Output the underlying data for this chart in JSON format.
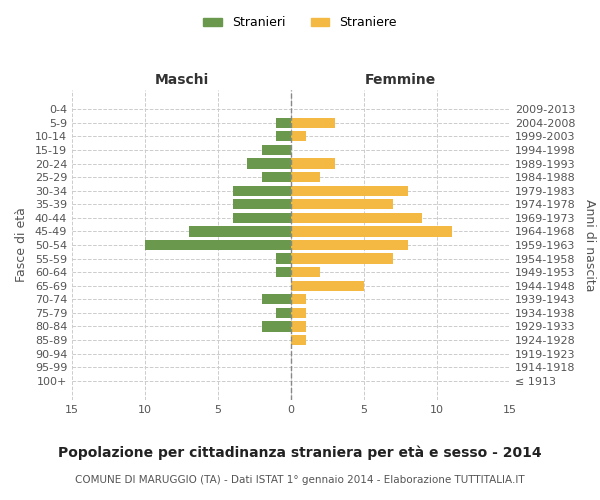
{
  "age_groups": [
    "100+",
    "95-99",
    "90-94",
    "85-89",
    "80-84",
    "75-79",
    "70-74",
    "65-69",
    "60-64",
    "55-59",
    "50-54",
    "45-49",
    "40-44",
    "35-39",
    "30-34",
    "25-29",
    "20-24",
    "15-19",
    "10-14",
    "5-9",
    "0-4"
  ],
  "birth_years": [
    "≤ 1913",
    "1914-1918",
    "1919-1923",
    "1924-1928",
    "1929-1933",
    "1934-1938",
    "1939-1943",
    "1944-1948",
    "1949-1953",
    "1954-1958",
    "1959-1963",
    "1964-1968",
    "1969-1973",
    "1974-1978",
    "1979-1983",
    "1984-1988",
    "1989-1993",
    "1994-1998",
    "1999-2003",
    "2004-2008",
    "2009-2013"
  ],
  "males": [
    0,
    0,
    0,
    0,
    2,
    1,
    2,
    0,
    1,
    1,
    10,
    7,
    4,
    4,
    4,
    2,
    3,
    2,
    1,
    1,
    0
  ],
  "females": [
    0,
    0,
    0,
    1,
    1,
    1,
    1,
    5,
    2,
    7,
    8,
    11,
    9,
    7,
    8,
    2,
    3,
    0,
    1,
    3,
    0
  ],
  "male_color": "#6a994e",
  "female_color": "#f4b942",
  "background_color": "#ffffff",
  "grid_color": "#cccccc",
  "title": "Popolazione per cittadinanza straniera per età e sesso - 2014",
  "subtitle": "COMUNE DI MARUGGIO (TA) - Dati ISTAT 1° gennaio 2014 - Elaborazione TUTTITALIA.IT",
  "xlabel_left": "Maschi",
  "xlabel_right": "Femmine",
  "ylabel_left": "Fasce di età",
  "ylabel_right": "Anni di nascita",
  "xlim": 15,
  "legend_stranieri": "Stranieri",
  "legend_straniere": "Straniere"
}
